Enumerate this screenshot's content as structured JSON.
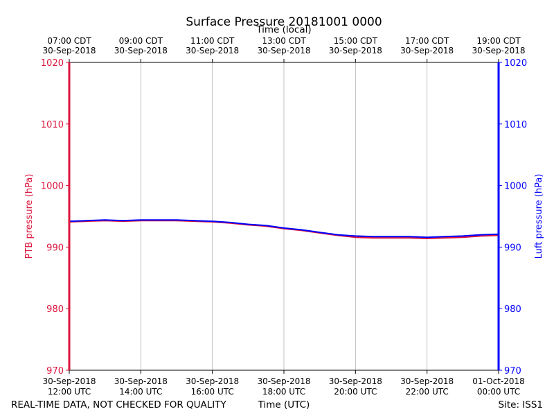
{
  "chart_data": {
    "type": "line",
    "title": "Surface Pressure 20181001 0000",
    "top_axis_label": "Time (local)",
    "xlabel": "Time (UTC)",
    "ylabel_left": "PTB pressure (hPa)",
    "ylabel_right": "Luft pressure (hPa)",
    "footer_left": "REAL-TIME DATA, NOT CHECKED FOR QUALITY",
    "footer_right": "Site: ISS1",
    "x_range_hours_utc": [
      12,
      24
    ],
    "ylim": [
      970,
      1020
    ],
    "yticks": [
      970,
      980,
      990,
      1000,
      1010,
      1020
    ],
    "grid": "vertical lines at major x ticks",
    "colors": {
      "left_axis": "#dc143c",
      "right_axis": "#0000ff",
      "series_ptb": "#dc143c",
      "series_luft": "#0000ff",
      "grid": "#b0b0b0"
    },
    "x_bottom_ticks": [
      {
        "date": "30-Sep-2018",
        "time": "12:00 UTC"
      },
      {
        "date": "30-Sep-2018",
        "time": "14:00 UTC"
      },
      {
        "date": "30-Sep-2018",
        "time": "16:00 UTC"
      },
      {
        "date": "30-Sep-2018",
        "time": "18:00 UTC"
      },
      {
        "date": "30-Sep-2018",
        "time": "20:00 UTC"
      },
      {
        "date": "30-Sep-2018",
        "time": "22:00 UTC"
      },
      {
        "date": "01-Oct-2018",
        "time": "00:00 UTC"
      }
    ],
    "x_top_ticks": [
      {
        "time": "07:00 CDT",
        "date": "30-Sep-2018"
      },
      {
        "time": "09:00 CDT",
        "date": "30-Sep-2018"
      },
      {
        "time": "11:00 CDT",
        "date": "30-Sep-2018"
      },
      {
        "time": "13:00 CDT",
        "date": "30-Sep-2018"
      },
      {
        "time": "15:00 CDT",
        "date": "30-Sep-2018"
      },
      {
        "time": "17:00 CDT",
        "date": "30-Sep-2018"
      },
      {
        "time": "19:00 CDT",
        "date": "30-Sep-2018"
      }
    ],
    "series": [
      {
        "x": [
          12.0,
          12.5,
          13.0,
          13.5,
          14.0,
          14.5,
          15.0,
          15.5,
          16.0,
          16.5,
          17.0,
          17.5,
          18.0,
          18.5,
          19.0,
          19.5,
          20.0,
          20.5,
          21.0,
          21.5,
          22.0,
          22.5,
          23.0,
          23.5,
          24.0
        ],
        "y": [
          994.1,
          994.2,
          994.3,
          994.2,
          994.3,
          994.3,
          994.3,
          994.2,
          994.1,
          993.9,
          993.6,
          993.4,
          993.0,
          992.7,
          992.3,
          991.9,
          991.6,
          991.5,
          991.5,
          991.5,
          991.4,
          991.5,
          991.6,
          991.8,
          991.9
        ]
      },
      {
        "x": [
          12.0,
          12.5,
          13.0,
          13.5,
          14.0,
          14.5,
          15.0,
          15.5,
          16.0,
          16.5,
          17.0,
          17.5,
          18.0,
          18.5,
          19.0,
          19.5,
          20.0,
          20.5,
          21.0,
          21.5,
          22.0,
          22.5,
          23.0,
          23.5,
          24.0
        ],
        "y": [
          994.2,
          994.3,
          994.4,
          994.3,
          994.4,
          994.4,
          994.4,
          994.3,
          994.2,
          994.0,
          993.7,
          993.5,
          993.1,
          992.8,
          992.4,
          992.0,
          991.8,
          991.7,
          991.7,
          991.7,
          991.6,
          991.7,
          991.8,
          992.0,
          992.1
        ]
      }
    ]
  }
}
